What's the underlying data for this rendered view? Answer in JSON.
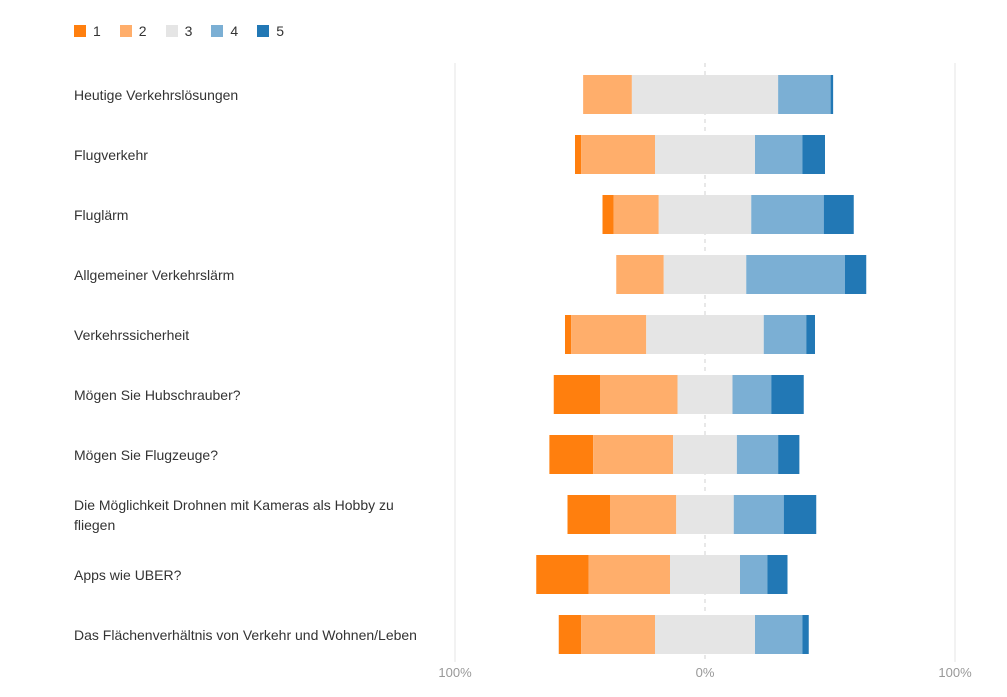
{
  "chart_data": {
    "type": "bar",
    "orientation": "horizontal",
    "stacked": "diverging",
    "legend_position": "top-left",
    "grid": true,
    "xlim": [
      -100,
      100
    ],
    "x_ticks": [
      "100%",
      "0%",
      "100%"
    ],
    "legend": [
      "1",
      "2",
      "3",
      "4",
      "5"
    ],
    "colors": [
      "#FF7F0E",
      "#FFAE6B",
      "#E5E5E5",
      "#7BAFD4",
      "#2278B5"
    ],
    "categories": [
      "Heutige Verkehrslösungen",
      "Flugverkehr",
      "Fluglärm",
      "Allgemeiner Verkehrslärm",
      "Verkehrssicherheit",
      "Mögen Sie Hubschrauber?",
      "Mögen Sie Flugzeuge?",
      "Die Möglichkeit Drohnen mit Kameras als Hobby zu fliegen",
      "Apps wie UBER?",
      "Das Flächenverhältnis von Verkehr und Wohnen/Leben"
    ],
    "series": [
      {
        "name": "1",
        "values": [
          0.0,
          2.5,
          4.5,
          0.0,
          2.5,
          18.5,
          17.5,
          17.0,
          21.0,
          9.0
        ]
      },
      {
        "name": "2",
        "values": [
          19.5,
          29.5,
          18.0,
          19.0,
          30.0,
          31.0,
          32.0,
          26.5,
          32.5,
          29.5
        ]
      },
      {
        "name": "3",
        "values": [
          58.5,
          40.0,
          37.0,
          33.0,
          47.0,
          22.0,
          25.5,
          23.0,
          28.0,
          40.0
        ]
      },
      {
        "name": "4",
        "values": [
          21.0,
          19.0,
          29.0,
          39.5,
          17.0,
          15.5,
          16.5,
          20.0,
          11.0,
          19.0
        ]
      },
      {
        "name": "5",
        "values": [
          1.0,
          9.0,
          12.0,
          8.5,
          3.5,
          13.0,
          8.5,
          13.0,
          8.0,
          2.5
        ]
      }
    ]
  }
}
